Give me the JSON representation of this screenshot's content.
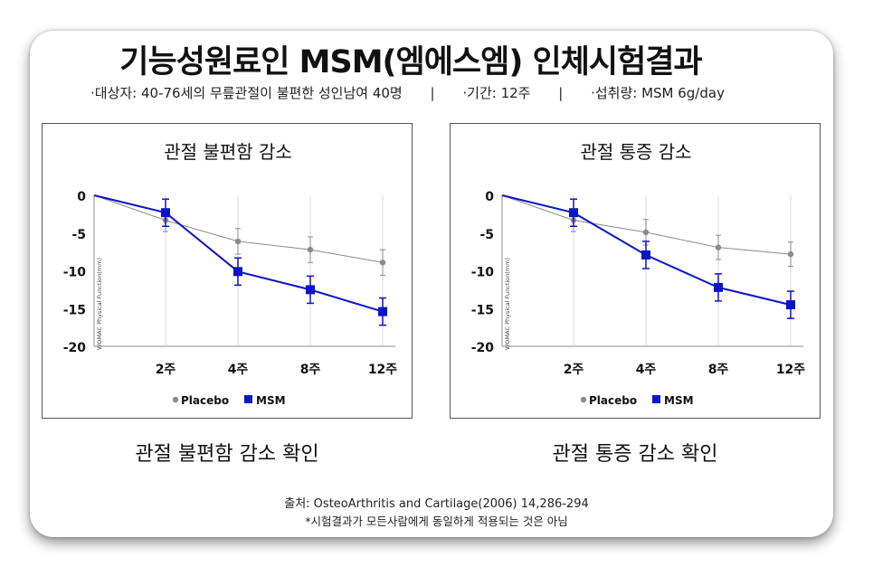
{
  "title": "기능성원료인 MSM(엠에스엠) 인체시험결과",
  "subtitle": {
    "subjects": "·대상자: 40-76세의 무릎관절이 불편한 성인남여 40명",
    "sep1": "|",
    "period": "·기간: 12주",
    "sep2": "|",
    "intake": "·섭취량: MSM 6g/day"
  },
  "captions": [
    "관절 불편함 감소 확인",
    "관절 통증 감소 확인"
  ],
  "footer": {
    "source": "출처: OsteoArthritis and Cartilage(2006) 14,286-294",
    "disclaimer": "*시험결과가 모든사람에게 동일하게 적용되는 것은 아님"
  },
  "colors": {
    "placebo": "#8a8a8a",
    "msm": "#0a14c8"
  },
  "chart_data": [
    {
      "type": "line",
      "title": "관절 불편함 감소",
      "ylabel": "WOMAC Physical Function(mm)",
      "x": [
        "",
        "2주",
        "4주",
        "8주",
        "12주"
      ],
      "ylim": [
        -20,
        0
      ],
      "yticks": [
        0,
        -5,
        -10,
        -15,
        -20
      ],
      "legend_position": "bottom",
      "series": [
        {
          "name": "Placebo",
          "values": [
            0,
            -3.3,
            -6.1,
            -7.2,
            -8.9
          ],
          "errors": [
            0,
            1.5,
            1.7,
            1.7,
            1.7
          ]
        },
        {
          "name": "MSM",
          "values": [
            0,
            -2.3,
            -10.1,
            -12.5,
            -15.4
          ],
          "errors": [
            0,
            1.8,
            1.8,
            1.8,
            1.8
          ]
        }
      ]
    },
    {
      "type": "line",
      "title": "관절 통증 감소",
      "ylabel": "WOMAC Physical Function(mm)",
      "x": [
        "",
        "2주",
        "4주",
        "8주",
        "12주"
      ],
      "ylim": [
        -20,
        0
      ],
      "yticks": [
        0,
        -5,
        -10,
        -15,
        -20
      ],
      "legend_position": "bottom",
      "series": [
        {
          "name": "Placebo",
          "values": [
            0,
            -3.3,
            -4.9,
            -6.9,
            -7.8
          ],
          "errors": [
            0,
            1.5,
            1.7,
            1.6,
            1.6
          ]
        },
        {
          "name": "MSM",
          "values": [
            0,
            -2.3,
            -7.9,
            -12.2,
            -14.5
          ],
          "errors": [
            0,
            1.8,
            1.8,
            1.8,
            1.8
          ]
        }
      ]
    }
  ]
}
